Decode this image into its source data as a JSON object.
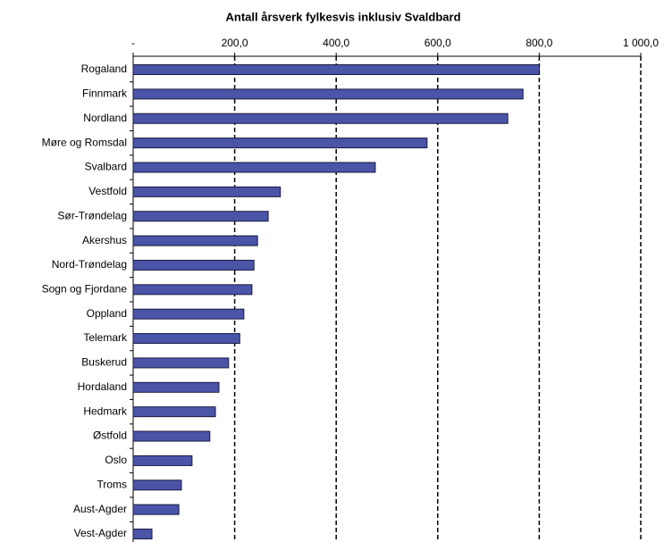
{
  "chart_data": {
    "type": "bar",
    "orientation": "horizontal",
    "title": "Antall årsverk fylkesvis inklusiv Svaldbard",
    "categories": [
      "Rogaland",
      "Finnmark",
      "Nordland",
      "Møre og Romsdal",
      "Svalbard",
      "Vestfold",
      "Sør-Trøndelag",
      "Akershus",
      "Nord-Trøndelag",
      "Sogn og Fjordane",
      "Oppland",
      "Telemark",
      "Buskerud",
      "Hordaland",
      "Hedmark",
      "Østfold",
      "Oslo",
      "Troms",
      "Aust-Agder",
      "Vest-Agder"
    ],
    "values": [
      800,
      768,
      738,
      579,
      477,
      290,
      266,
      245,
      238,
      234,
      218,
      210,
      188,
      169,
      162,
      151,
      116,
      95,
      90,
      37
    ],
    "color": "#4a55a8",
    "xlim": [
      0,
      1000
    ],
    "xticks": [
      {
        "value": 0,
        "label": "-"
      },
      {
        "value": 200,
        "label": "200,0"
      },
      {
        "value": 400,
        "label": "400,0"
      },
      {
        "value": 600,
        "label": "600,0"
      },
      {
        "value": 800,
        "label": "800,0"
      },
      {
        "value": 1000,
        "label": "1 000,0"
      }
    ],
    "grid": true
  }
}
